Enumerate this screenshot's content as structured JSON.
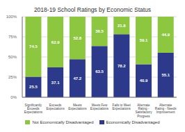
{
  "chart_data": {
    "type": "bar",
    "title": "2018-19 School Ratings by Economic Status",
    "categories": [
      "Significantly\nExceeds\nExpectations",
      "Exceeds\nExpectations",
      "Meets\nExpectations",
      "Meets Few\nExpectations",
      "Fails to Meet\nExpectations",
      "Alternate\nRating -\nSatisfactory\nProgress",
      "Alternate\nRating - Needs\nImprovement"
    ],
    "series": [
      {
        "name": "Economically Disadvantaged",
        "color": "#2D3A8C",
        "values": [
          25.5,
          37.1,
          47.2,
          63.5,
          78.2,
          40.9,
          55.1
        ]
      },
      {
        "name": "Not Economically Disadvantaged",
        "color": "#8DC63F",
        "values": [
          74.5,
          62.9,
          52.8,
          36.5,
          21.8,
          59.1,
          44.9
        ]
      }
    ],
    "stacked": true,
    "data_labels": true,
    "ylim": [
      0,
      100
    ],
    "yticks": [
      {
        "value": 0,
        "label": "0%"
      },
      {
        "value": 25,
        "label": "25%"
      },
      {
        "value": 50,
        "label": "50%"
      },
      {
        "value": 75,
        "label": "75%"
      },
      {
        "value": 100,
        "label": "100%"
      }
    ],
    "grid": true
  }
}
